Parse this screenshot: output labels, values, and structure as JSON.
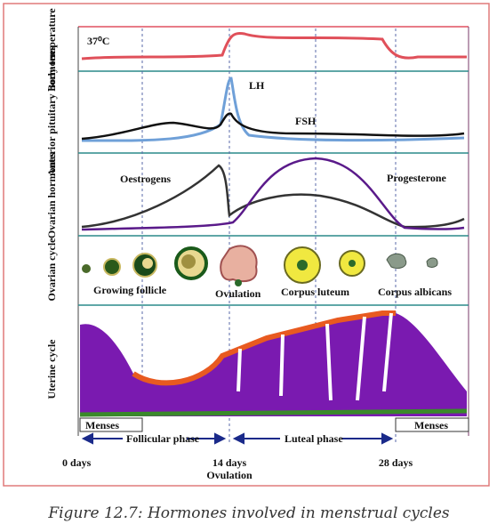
{
  "panels": {
    "body_temperature": "Body temperature",
    "pituitary": "Anterior pituitary hormones",
    "ovarian_hormones": "Ovarian hormones",
    "ovarian_cycle": "Ovarian cycle",
    "uterine_cycle": "Uterine cycle"
  },
  "annotations": {
    "temperature": "37⁰C",
    "lh": "LH",
    "fsh": "FSH",
    "oestrogens": "Oestrogens",
    "progesterone": "Progesterone"
  },
  "ovary_stages": [
    "Growing follicle",
    "Ovulation",
    "Corpus luteum",
    "Corpus albicans"
  ],
  "phases": {
    "menses_start": "Menses",
    "follicular": "Follicular phase",
    "luteal": "Luteal phase",
    "menses_end": "Menses"
  },
  "days": {
    "start": "0 days",
    "mid": "14 days",
    "mid_note": "Ovulation",
    "end": "28 days"
  },
  "caption": "Figure 12.7: Hormones involved in menstrual cycles"
}
